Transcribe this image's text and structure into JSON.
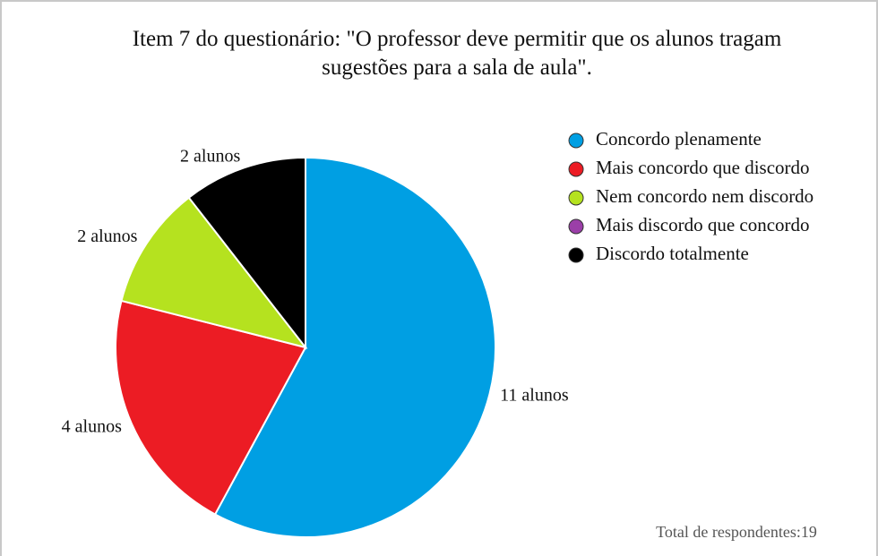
{
  "chart_data": {
    "type": "pie",
    "title": "Item 7 do questionário: \"O professor deve permitir que os alunos tragam sugestões para a sala de aula\".",
    "categories": [
      "Concordo plenamente",
      "Mais concordo que discordo",
      "Nem concordo nem discordo",
      "Mais discordo que concordo",
      "Discordo totalmente"
    ],
    "values": [
      11,
      4,
      2,
      0,
      2
    ],
    "value_labels": [
      "11 alunos",
      "4 alunos",
      "2 alunos",
      null,
      "2 alunos"
    ],
    "colors": [
      "#009fe3",
      "#ec1c24",
      "#b5e21f",
      "#9b3fa8",
      "#000000"
    ],
    "legend": "right",
    "annotation": "Total de respondentes:19"
  }
}
